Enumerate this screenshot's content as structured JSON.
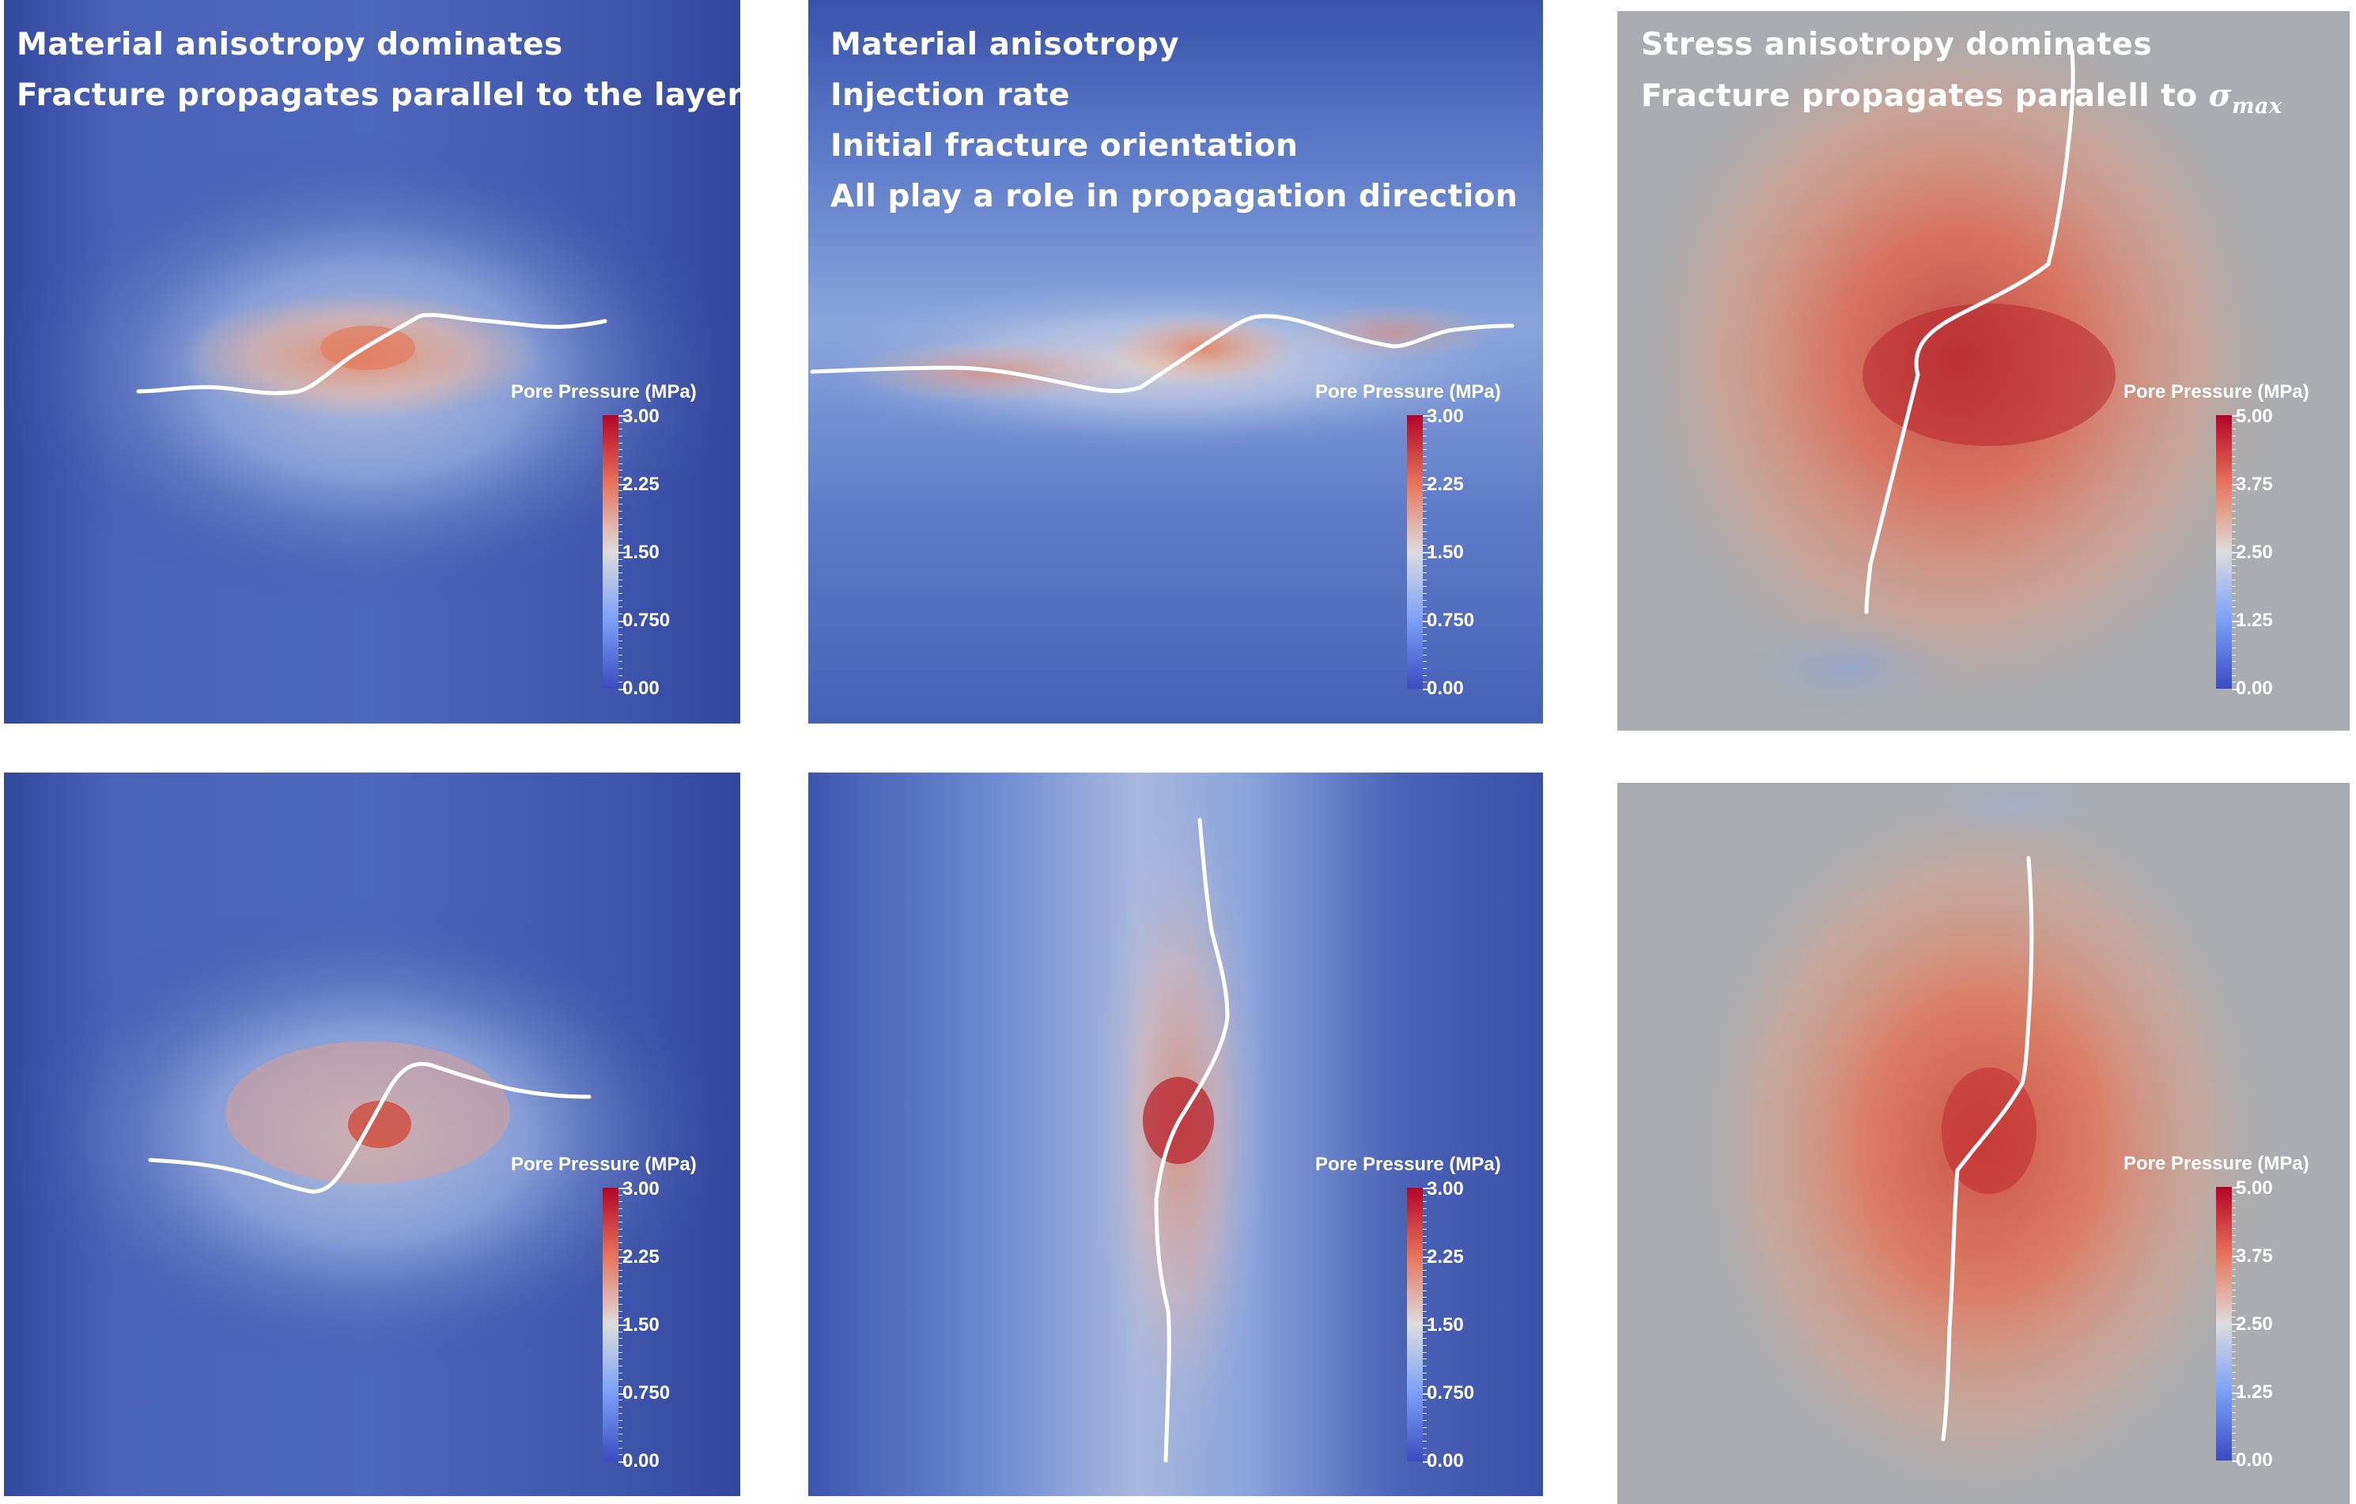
{
  "colormap": {
    "low": "#3b4cc0",
    "mid": "#dddcdc",
    "high": "#b40426"
  },
  "panels": [
    {
      "id": "p1",
      "caption": [
        "Material anisotropy dominates",
        "Fracture propagates parallel to the layer"
      ],
      "legend_title": "Pore Pressure (MPa)",
      "ticks": [
        "3.00",
        "2.25",
        "1.50",
        "0.750",
        "0.00"
      ],
      "background": "#3a50a6"
    },
    {
      "id": "p2",
      "caption": [
        "Material anisotropy",
        "Injection rate",
        "Initial fracture orientation",
        "All play a role in propagation direction"
      ],
      "legend_title": "Pore Pressure (MPa)",
      "ticks": [
        "3.00",
        "2.25",
        "1.50",
        "0.750",
        "0.00"
      ],
      "background": "#3a50a6"
    },
    {
      "id": "p3",
      "caption": [
        "Stress anisotropy dominates",
        "Fracture propagates paralell to "
      ],
      "caption_symbol": {
        "base": "σ",
        "sub": "max"
      },
      "legend_title": "Pore Pressure (MPa)",
      "ticks": [
        "5.00",
        "3.75",
        "2.50",
        "1.25",
        "0.00"
      ],
      "background": "#a9acb0"
    },
    {
      "id": "p4",
      "caption": [],
      "legend_title": "Pore Pressure (MPa)",
      "ticks": [
        "3.00",
        "2.25",
        "1.50",
        "0.750",
        "0.00"
      ],
      "background": "#3a50a6"
    },
    {
      "id": "p5",
      "caption": [],
      "legend_title": "Pore Pressure (MPa)",
      "ticks": [
        "3.00",
        "2.25",
        "1.50",
        "0.750",
        "0.00"
      ],
      "background": "#3a50a6"
    },
    {
      "id": "p6",
      "caption": [],
      "legend_title": "Pore Pressure (MPa)",
      "ticks": [
        "5.00",
        "3.75",
        "2.50",
        "1.25",
        "0.00"
      ],
      "background": "#a9acb0"
    }
  ]
}
